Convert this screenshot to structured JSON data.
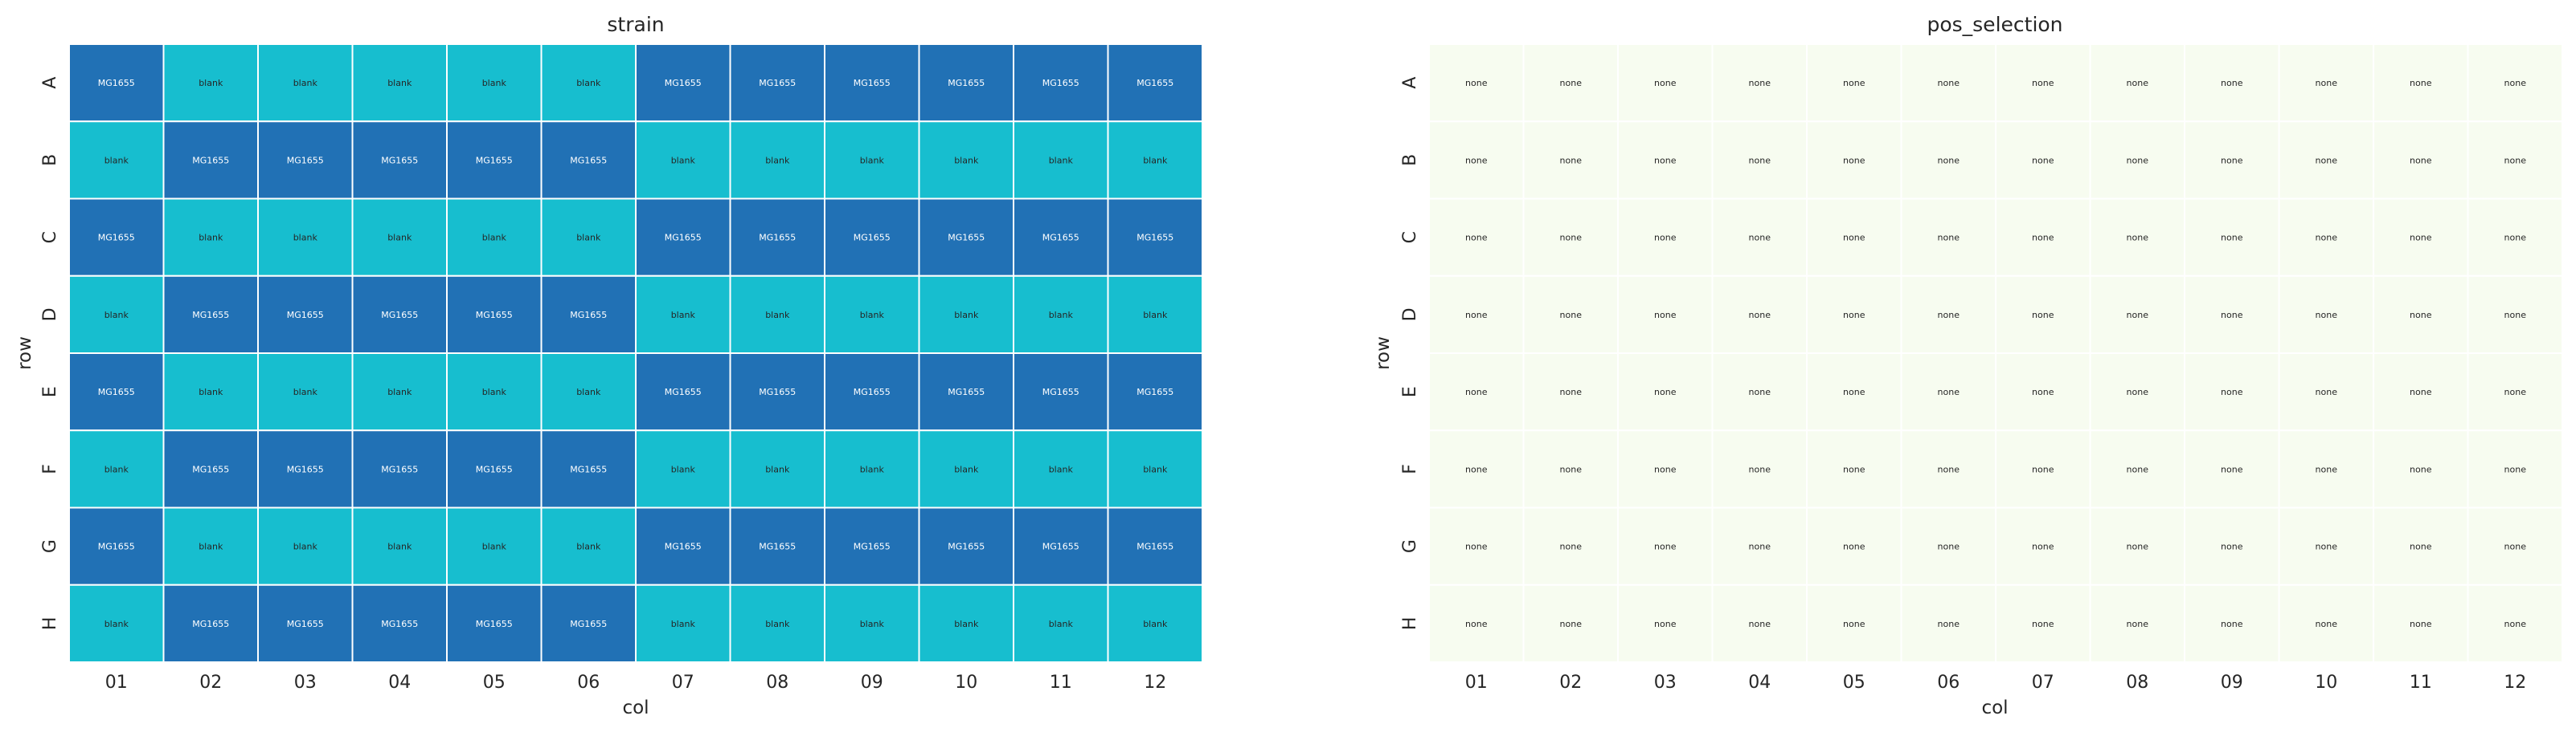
{
  "chart_data": [
    {
      "type": "heatmap",
      "title": "strain",
      "xlabel": "col",
      "ylabel": "row",
      "x": [
        "01",
        "02",
        "03",
        "04",
        "05",
        "06",
        "07",
        "08",
        "09",
        "10",
        "11",
        "12"
      ],
      "y": [
        "A",
        "B",
        "C",
        "D",
        "E",
        "F",
        "G",
        "H"
      ],
      "grid": true,
      "legend": "none",
      "colors": {
        "MG1655": "#2171b5",
        "blank": "#17becf",
        "text_on_MG1655": "#ffffff",
        "text_on_blank": "#262626",
        "cell_border": "#ffffff"
      },
      "values": [
        [
          "MG1655",
          "blank",
          "blank",
          "blank",
          "blank",
          "blank",
          "MG1655",
          "MG1655",
          "MG1655",
          "MG1655",
          "MG1655",
          "MG1655"
        ],
        [
          "blank",
          "MG1655",
          "MG1655",
          "MG1655",
          "MG1655",
          "MG1655",
          "blank",
          "blank",
          "blank",
          "blank",
          "blank",
          "blank"
        ],
        [
          "MG1655",
          "blank",
          "blank",
          "blank",
          "blank",
          "blank",
          "MG1655",
          "MG1655",
          "MG1655",
          "MG1655",
          "MG1655",
          "MG1655"
        ],
        [
          "blank",
          "MG1655",
          "MG1655",
          "MG1655",
          "MG1655",
          "MG1655",
          "blank",
          "blank",
          "blank",
          "blank",
          "blank",
          "blank"
        ],
        [
          "MG1655",
          "blank",
          "blank",
          "blank",
          "blank",
          "blank",
          "MG1655",
          "MG1655",
          "MG1655",
          "MG1655",
          "MG1655",
          "MG1655"
        ],
        [
          "blank",
          "MG1655",
          "MG1655",
          "MG1655",
          "MG1655",
          "MG1655",
          "blank",
          "blank",
          "blank",
          "blank",
          "blank",
          "blank"
        ],
        [
          "MG1655",
          "blank",
          "blank",
          "blank",
          "blank",
          "blank",
          "MG1655",
          "MG1655",
          "MG1655",
          "MG1655",
          "MG1655",
          "MG1655"
        ],
        [
          "blank",
          "MG1655",
          "MG1655",
          "MG1655",
          "MG1655",
          "MG1655",
          "blank",
          "blank",
          "blank",
          "blank",
          "blank",
          "blank"
        ]
      ]
    },
    {
      "type": "heatmap",
      "title": "pos_selection",
      "xlabel": "col",
      "ylabel": "row",
      "x": [
        "01",
        "02",
        "03",
        "04",
        "05",
        "06",
        "07",
        "08",
        "09",
        "10",
        "11",
        "12"
      ],
      "y": [
        "A",
        "B",
        "C",
        "D",
        "E",
        "F",
        "G",
        "H"
      ],
      "grid": true,
      "legend": "none",
      "colors": {
        "none": "#f7fcf0",
        "text_on_none": "#262626",
        "cell_border": "#ffffff"
      },
      "values": [
        [
          "none",
          "none",
          "none",
          "none",
          "none",
          "none",
          "none",
          "none",
          "none",
          "none",
          "none",
          "none"
        ],
        [
          "none",
          "none",
          "none",
          "none",
          "none",
          "none",
          "none",
          "none",
          "none",
          "none",
          "none",
          "none"
        ],
        [
          "none",
          "none",
          "none",
          "none",
          "none",
          "none",
          "none",
          "none",
          "none",
          "none",
          "none",
          "none"
        ],
        [
          "none",
          "none",
          "none",
          "none",
          "none",
          "none",
          "none",
          "none",
          "none",
          "none",
          "none",
          "none"
        ],
        [
          "none",
          "none",
          "none",
          "none",
          "none",
          "none",
          "none",
          "none",
          "none",
          "none",
          "none",
          "none"
        ],
        [
          "none",
          "none",
          "none",
          "none",
          "none",
          "none",
          "none",
          "none",
          "none",
          "none",
          "none",
          "none"
        ],
        [
          "none",
          "none",
          "none",
          "none",
          "none",
          "none",
          "none",
          "none",
          "none",
          "none",
          "none",
          "none"
        ],
        [
          "none",
          "none",
          "none",
          "none",
          "none",
          "none",
          "none",
          "none",
          "none",
          "none",
          "none",
          "none"
        ]
      ]
    }
  ]
}
